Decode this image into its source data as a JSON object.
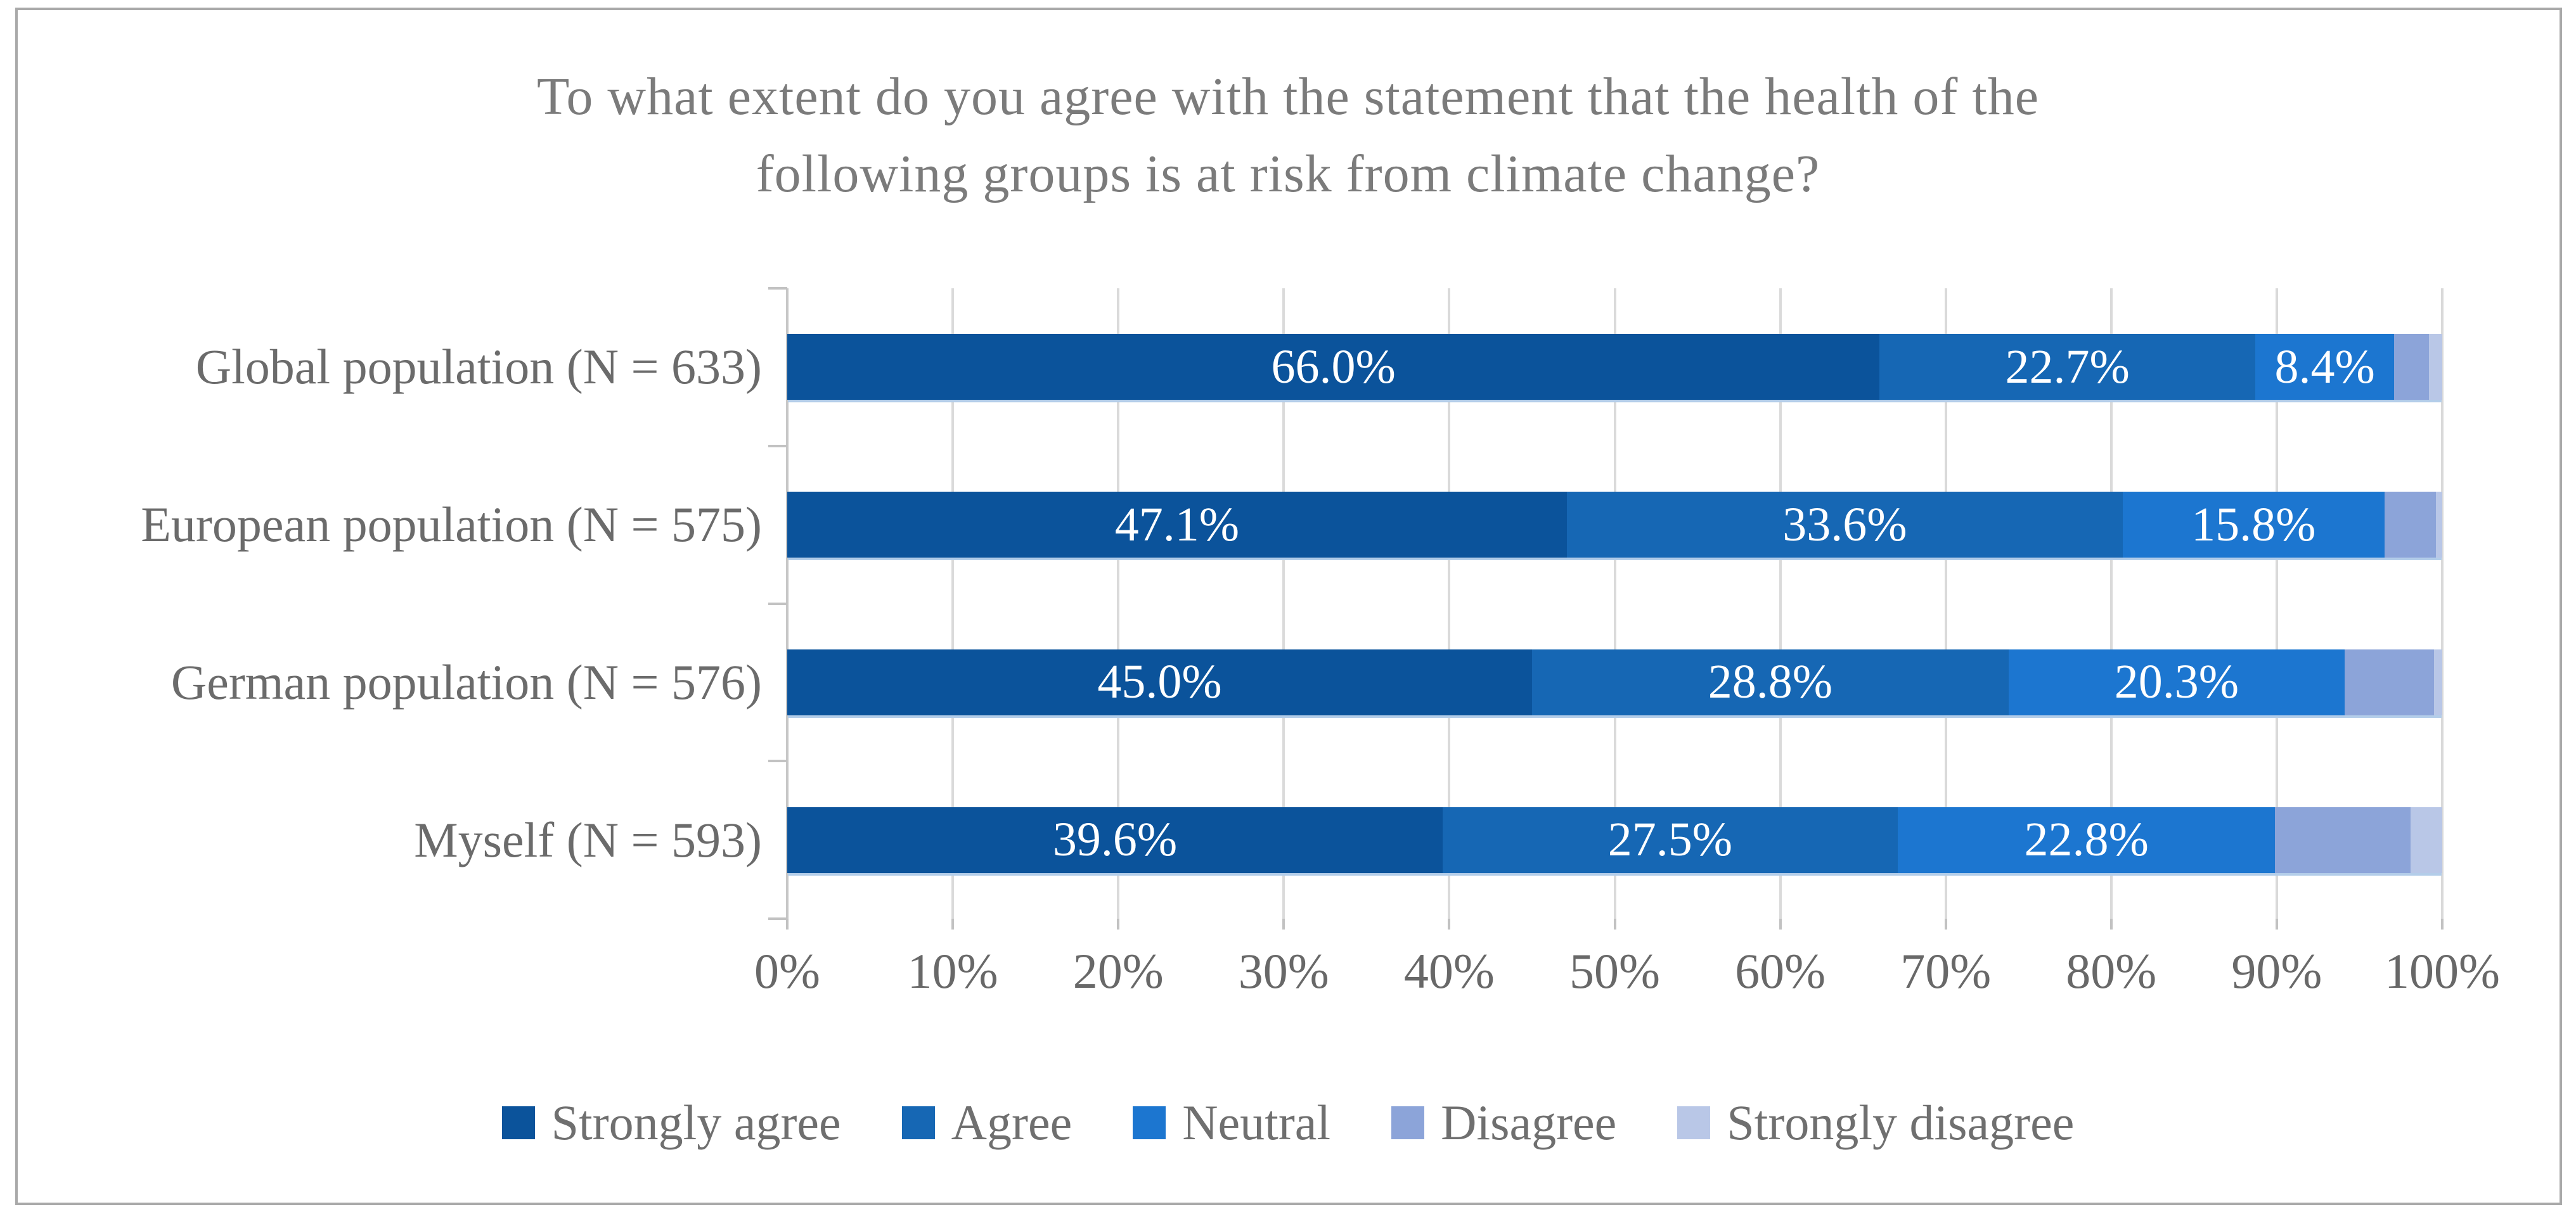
{
  "figure": {
    "title_lines": [
      "To what extent do you agree with the statement that the health of the",
      "following groups is at risk from climate change?"
    ]
  },
  "chart_data": {
    "type": "bar",
    "orientation": "horizontal",
    "stacked": true,
    "percent_stacked": true,
    "title": "To what extent do you agree with the statement that the health of the following groups is at risk from climate change?",
    "categories": [
      "Global population (N = 633)",
      "European population (N = 575)",
      "German population (N = 576)",
      "Myself (N = 593)"
    ],
    "series": [
      {
        "name": "Strongly agree",
        "color": "#0b539b",
        "values": [
          66.0,
          47.1,
          45.0,
          39.6
        ]
      },
      {
        "name": "Agree",
        "color": "#1667b4",
        "values": [
          22.7,
          33.6,
          28.8,
          27.5
        ]
      },
      {
        "name": "Neutral",
        "color": "#1c76d0",
        "values": [
          8.4,
          15.8,
          20.3,
          22.8
        ]
      },
      {
        "name": "Disagree",
        "color": "#8ca4d9",
        "values": [
          2.1,
          3.1,
          5.4,
          8.2
        ]
      },
      {
        "name": "Strongly disagree",
        "color": "#b9c7e7",
        "values": [
          0.8,
          0.4,
          0.5,
          1.9
        ]
      }
    ],
    "shown_value_labels": [
      [
        "66.0%",
        "22.7%",
        "8.4%"
      ],
      [
        "47.1%",
        "33.6%",
        "15.8%"
      ],
      [
        "45.0%",
        "28.8%",
        "20.3%"
      ],
      [
        "39.6%",
        "27.5%",
        "22.8%"
      ]
    ],
    "label_series_count": 3,
    "value_label_format": "one decimal + %",
    "xlim": [
      0,
      100
    ],
    "x_ticks": [
      "0%",
      "10%",
      "20%",
      "30%",
      "40%",
      "50%",
      "60%",
      "70%",
      "80%",
      "90%",
      "100%"
    ],
    "grid": true,
    "legend_position": "bottom",
    "axis_text_color": "#686868",
    "gridline_color": "#dadada"
  }
}
